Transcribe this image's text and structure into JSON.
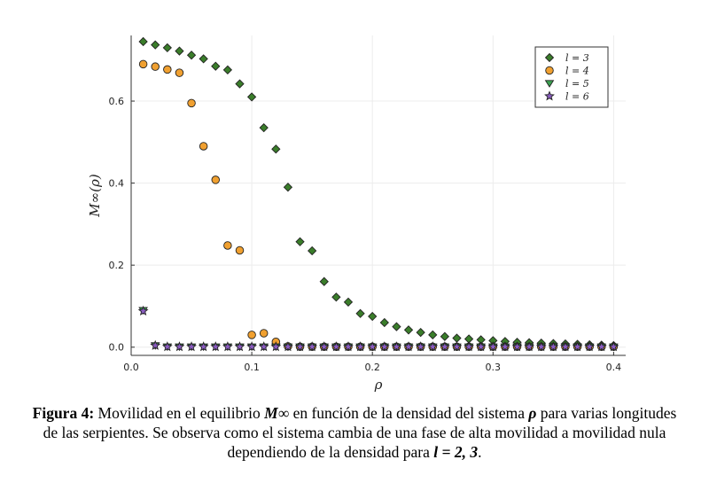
{
  "chart_data": {
    "type": "scatter",
    "xlabel": "ρ",
    "ylabel": "M∞(ρ)",
    "xlim": [
      0.0,
      0.41
    ],
    "ylim": [
      -0.02,
      0.76
    ],
    "xticks": [
      "0.0",
      "0.1",
      "0.2",
      "0.3",
      "0.4"
    ],
    "yticks": [
      "0.0",
      "0.2",
      "0.4",
      "0.6"
    ],
    "grid": true,
    "legend_position": "top-right",
    "series": [
      {
        "name": "l = 3",
        "marker": "diamond",
        "color": "#3a7d2a",
        "x": [
          0.01,
          0.02,
          0.03,
          0.04,
          0.05,
          0.06,
          0.07,
          0.08,
          0.09,
          0.1,
          0.11,
          0.12,
          0.13,
          0.14,
          0.15,
          0.16,
          0.17,
          0.18,
          0.19,
          0.2,
          0.21,
          0.22,
          0.23,
          0.24,
          0.25,
          0.26,
          0.27,
          0.28,
          0.29,
          0.3,
          0.31,
          0.32,
          0.33,
          0.34,
          0.35,
          0.36,
          0.37,
          0.38,
          0.39,
          0.4
        ],
        "y": [
          0.745,
          0.737,
          0.73,
          0.722,
          0.712,
          0.703,
          0.685,
          0.676,
          0.642,
          0.61,
          0.535,
          0.483,
          0.39,
          0.257,
          0.235,
          0.16,
          0.122,
          0.11,
          0.082,
          0.075,
          0.06,
          0.05,
          0.042,
          0.036,
          0.03,
          0.026,
          0.022,
          0.02,
          0.018,
          0.016,
          0.014,
          0.012,
          0.011,
          0.01,
          0.009,
          0.008,
          0.007,
          0.006,
          0.005,
          0.004
        ]
      },
      {
        "name": "l = 4",
        "marker": "circle",
        "color": "#f0a030",
        "x": [
          0.01,
          0.02,
          0.03,
          0.04,
          0.05,
          0.06,
          0.07,
          0.08,
          0.09,
          0.1,
          0.11,
          0.12,
          0.13,
          0.14,
          0.15,
          0.16,
          0.17,
          0.18,
          0.19,
          0.2,
          0.21,
          0.22,
          0.23,
          0.24,
          0.25,
          0.26,
          0.27,
          0.28,
          0.29,
          0.3,
          0.31,
          0.32,
          0.33,
          0.34,
          0.35,
          0.36,
          0.37,
          0.38,
          0.39,
          0.4
        ],
        "y": [
          0.69,
          0.684,
          0.677,
          0.669,
          0.595,
          0.49,
          0.408,
          0.248,
          0.236,
          0.03,
          0.034,
          0.013,
          0.002,
          0.001,
          0.001,
          0.001,
          0.001,
          0.001,
          0.001,
          0.001,
          0.001,
          0.001,
          0.001,
          0.001,
          0.001,
          0.001,
          0.001,
          0.001,
          0.001,
          0.001,
          0.001,
          0.001,
          0.001,
          0.001,
          0.001,
          0.001,
          0.001,
          0.001,
          0.001,
          0.001
        ]
      },
      {
        "name": "l = 5",
        "marker": "triangle-down",
        "color": "#3aa050",
        "x": [
          0.01,
          0.02,
          0.03,
          0.04,
          0.05,
          0.06,
          0.07,
          0.08,
          0.09,
          0.1,
          0.11,
          0.12,
          0.13,
          0.14,
          0.15,
          0.16,
          0.17,
          0.18,
          0.19,
          0.2,
          0.21,
          0.22,
          0.23,
          0.24,
          0.25,
          0.26,
          0.27,
          0.28,
          0.29,
          0.3,
          0.31,
          0.32,
          0.33,
          0.34,
          0.35,
          0.36,
          0.37,
          0.38,
          0.39,
          0.4
        ],
        "y": [
          0.09,
          0.004,
          0.001,
          0.001,
          0.001,
          0.001,
          0.001,
          0.001,
          0.001,
          0.001,
          0.001,
          0.001,
          0.001,
          0.001,
          0.001,
          0.001,
          0.001,
          0.001,
          0.001,
          0.001,
          0.001,
          0.001,
          0.001,
          0.001,
          0.001,
          0.001,
          0.001,
          0.001,
          0.001,
          0.001,
          0.001,
          0.001,
          0.001,
          0.001,
          0.001,
          0.001,
          0.001,
          0.001,
          0.001,
          0.001
        ]
      },
      {
        "name": "l = 6",
        "marker": "star",
        "color": "#8a5cc0",
        "x": [
          0.01,
          0.02,
          0.03,
          0.04,
          0.05,
          0.06,
          0.07,
          0.08,
          0.09,
          0.1,
          0.11,
          0.12,
          0.13,
          0.14,
          0.15,
          0.16,
          0.17,
          0.18,
          0.19,
          0.2,
          0.21,
          0.22,
          0.23,
          0.24,
          0.25,
          0.26,
          0.27,
          0.28,
          0.29,
          0.3,
          0.31,
          0.32,
          0.33,
          0.34,
          0.35,
          0.36,
          0.37,
          0.38,
          0.39,
          0.4
        ],
        "y": [
          0.088,
          0.004,
          0.001,
          0.001,
          0.001,
          0.001,
          0.001,
          0.001,
          0.001,
          0.001,
          0.001,
          0.001,
          0.001,
          0.001,
          0.001,
          0.001,
          0.001,
          0.001,
          0.001,
          0.001,
          0.001,
          0.001,
          0.001,
          0.001,
          0.001,
          0.001,
          0.001,
          0.001,
          0.001,
          0.001,
          0.001,
          0.001,
          0.001,
          0.001,
          0.001,
          0.001,
          0.001,
          0.001,
          0.001,
          0.001
        ]
      }
    ]
  },
  "caption": {
    "label": "Figura 4:",
    "text_1": " Movilidad en el equilibrio ",
    "symbol_M": "M∞",
    "text_2": " en función de la densidad del sistema ",
    "symbol_rho": "ρ",
    "text_3": " para varias longitudes de las serpientes. Se observa como el sistema cambia de una fase de alta movilidad a movilidad nula dependiendo de la densidad para ",
    "symbol_l": "l = 2, 3",
    "text_4": "."
  }
}
